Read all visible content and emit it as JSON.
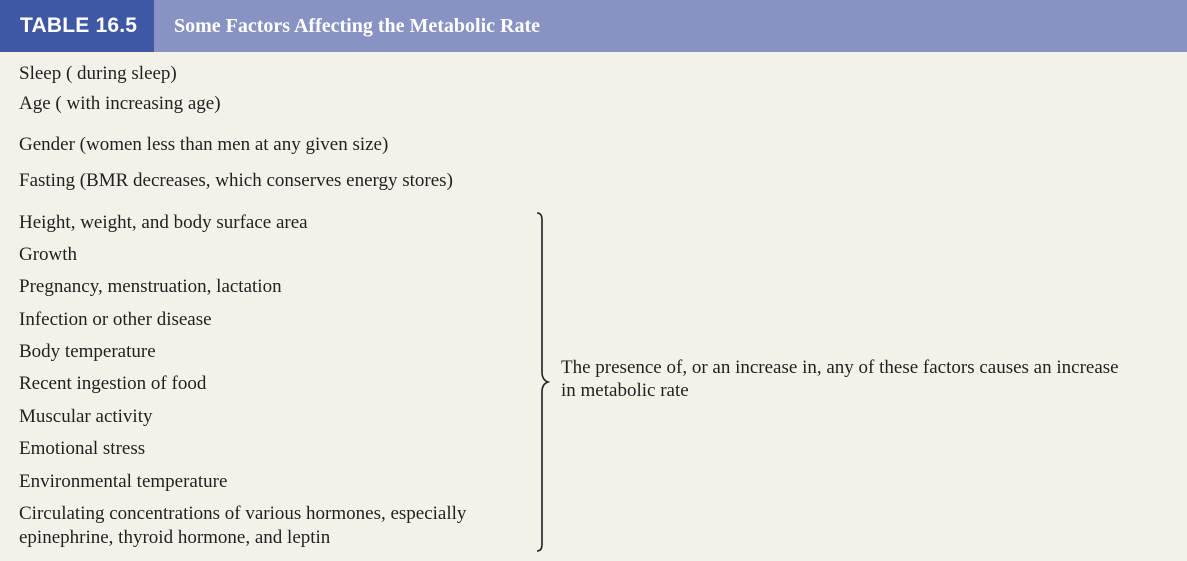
{
  "header": {
    "table_number": "TABLE 16.5",
    "title": "Some Factors Affecting the Metabolic Rate"
  },
  "rows": [
    "Sleep (   during sleep)",
    "Age (   with increasing age)",
    "Gender (women less than men at any given size)",
    "Fasting (BMR decreases, which conserves energy stores)",
    "Height, weight, and body surface area",
    "Growth",
    "Pregnancy, menstruation, lactation",
    "Infection or other disease",
    "Body temperature",
    "Recent ingestion of food",
    "Muscular activity",
    "Emotional stress",
    "Environmental temperature",
    "Circulating concentrations of various hormones, especially",
    "epinephrine, thyroid hormone, and leptin"
  ],
  "brace_note": {
    "line1": "The presence of, or an increase in, any of these factors causes an increase",
    "line2": "in metabolic rate"
  }
}
